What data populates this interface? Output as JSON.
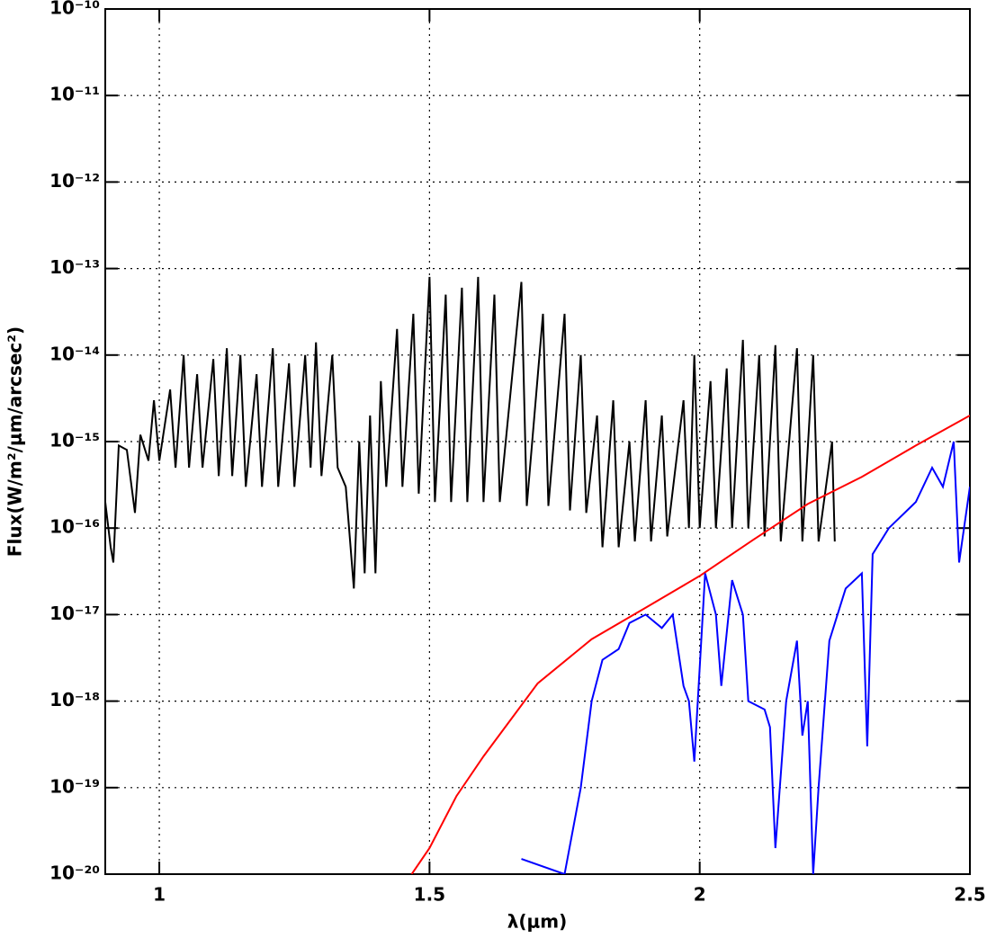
{
  "chart_data": {
    "type": "line",
    "x_label": "λ(μm)",
    "y_label": "Flux(W/m²/μm/arcsec²)",
    "log_y": true,
    "grid": true,
    "xlim": [
      0.9,
      2.5
    ],
    "xticks": [
      1,
      1.5,
      2,
      2.5
    ],
    "ylim": [
      1e-20,
      1e-10
    ],
    "yticks": [
      {
        "value": 1e-20,
        "label": "10⁻²⁰"
      },
      {
        "value": 1e-19,
        "label": "10⁻¹⁹"
      },
      {
        "value": 1e-18,
        "label": "10⁻¹⁸"
      },
      {
        "value": 1e-17,
        "label": "10⁻¹⁷"
      },
      {
        "value": 1e-16,
        "label": "10⁻¹⁶"
      },
      {
        "value": 1e-15,
        "label": "10⁻¹⁵"
      },
      {
        "value": 1e-14,
        "label": "10⁻¹⁴"
      },
      {
        "value": 1e-13,
        "label": "10⁻¹³"
      },
      {
        "value": 1e-12,
        "label": "10⁻¹²"
      },
      {
        "value": 1e-11,
        "label": "10⁻¹¹"
      },
      {
        "value": 1e-10,
        "label": "10⁻¹⁰"
      }
    ],
    "series": [
      {
        "color": "#000000",
        "x": [
          0.9,
          0.91,
          0.915,
          0.925,
          0.94,
          0.955,
          0.965,
          0.98,
          0.99,
          1.0,
          1.02,
          1.03,
          1.045,
          1.055,
          1.07,
          1.08,
          1.1,
          1.11,
          1.125,
          1.135,
          1.15,
          1.16,
          1.18,
          1.19,
          1.21,
          1.22,
          1.24,
          1.25,
          1.27,
          1.28,
          1.29,
          1.3,
          1.32,
          1.33,
          1.345,
          1.36,
          1.37,
          1.38,
          1.39,
          1.4,
          1.41,
          1.42,
          1.44,
          1.45,
          1.47,
          1.48,
          1.5,
          1.51,
          1.53,
          1.54,
          1.56,
          1.57,
          1.59,
          1.6,
          1.62,
          1.63,
          1.67,
          1.68,
          1.71,
          1.72,
          1.75,
          1.76,
          1.78,
          1.79,
          1.81,
          1.82,
          1.84,
          1.85,
          1.87,
          1.88,
          1.9,
          1.91,
          1.93,
          1.94,
          1.97,
          1.98,
          1.99,
          2.0,
          2.02,
          2.03,
          2.05,
          2.06,
          2.08,
          2.09,
          2.11,
          2.12,
          2.14,
          2.15,
          2.18,
          2.19,
          2.21,
          2.22,
          2.245,
          2.25
        ],
        "values": [
          2e-16,
          6e-17,
          4e-17,
          9e-16,
          8e-16,
          1.5e-16,
          1.2e-15,
          6e-16,
          3e-15,
          6e-16,
          4e-15,
          5e-16,
          1e-14,
          5e-16,
          6e-15,
          5e-16,
          9e-15,
          4e-16,
          1.2e-14,
          4e-16,
          1e-14,
          3e-16,
          6e-15,
          3e-16,
          1.2e-14,
          3e-16,
          8e-15,
          3e-16,
          1e-14,
          5e-16,
          1.4e-14,
          4e-16,
          1e-14,
          5e-16,
          3e-16,
          2e-17,
          1e-15,
          3e-17,
          2e-15,
          3e-17,
          5e-15,
          3e-16,
          2e-14,
          3e-16,
          3e-14,
          2.5e-16,
          8e-14,
          2e-16,
          5e-14,
          2e-16,
          6e-14,
          2e-16,
          8e-14,
          2e-16,
          5e-14,
          2e-16,
          7e-14,
          1.8e-16,
          3e-14,
          1.8e-16,
          3e-14,
          1.6e-16,
          1e-14,
          1.5e-16,
          2e-15,
          6e-17,
          3e-15,
          6e-17,
          1e-15,
          7e-17,
          3e-15,
          7e-17,
          2e-15,
          8e-17,
          3e-15,
          1e-16,
          1e-14,
          1e-16,
          5e-15,
          1e-16,
          7e-15,
          1e-16,
          1.5e-14,
          1e-16,
          1e-14,
          8e-17,
          1.3e-14,
          7e-17,
          1.2e-14,
          7e-17,
          1e-14,
          7e-17,
          1e-15,
          7e-17
        ]
      },
      {
        "color": "#ff0000",
        "x": [
          1.467,
          1.5,
          1.55,
          1.6,
          1.7,
          1.8,
          1.9,
          2.0,
          2.1,
          2.2,
          2.3,
          2.4,
          2.5
        ],
        "values": [
          1e-20,
          2e-20,
          8e-20,
          2.3e-19,
          1.6e-18,
          5.2e-18,
          1.2e-17,
          2.8e-17,
          7.4e-17,
          1.9e-16,
          3.9e-16,
          9e-16,
          2e-15
        ]
      },
      {
        "color": "#0000ff",
        "x": [
          1.67,
          1.75,
          1.78,
          1.8,
          1.82,
          1.85,
          1.87,
          1.9,
          1.93,
          1.95,
          1.97,
          1.98,
          1.99,
          2.01,
          2.03,
          2.04,
          2.06,
          2.08,
          2.09,
          2.12,
          2.13,
          2.14,
          2.16,
          2.18,
          2.19,
          2.2,
          2.21,
          2.22,
          2.24,
          2.27,
          2.3,
          2.31,
          2.32,
          2.35,
          2.4,
          2.43,
          2.45,
          2.47,
          2.48,
          2.5
        ],
        "values": [
          1.5e-20,
          1e-20,
          1e-19,
          1e-18,
          3e-18,
          4e-18,
          8e-18,
          1e-17,
          7e-18,
          1e-17,
          1.5e-18,
          1e-18,
          2e-19,
          3e-17,
          1e-17,
          1.5e-18,
          2.5e-17,
          1e-17,
          1e-18,
          8e-19,
          5e-19,
          2e-20,
          1e-18,
          5e-18,
          4e-19,
          1e-18,
          1e-20,
          1e-19,
          5e-18,
          2e-17,
          3e-17,
          3e-19,
          5e-17,
          1e-16,
          2e-16,
          5e-16,
          3e-16,
          1e-15,
          4e-17,
          3e-16
        ]
      }
    ]
  }
}
